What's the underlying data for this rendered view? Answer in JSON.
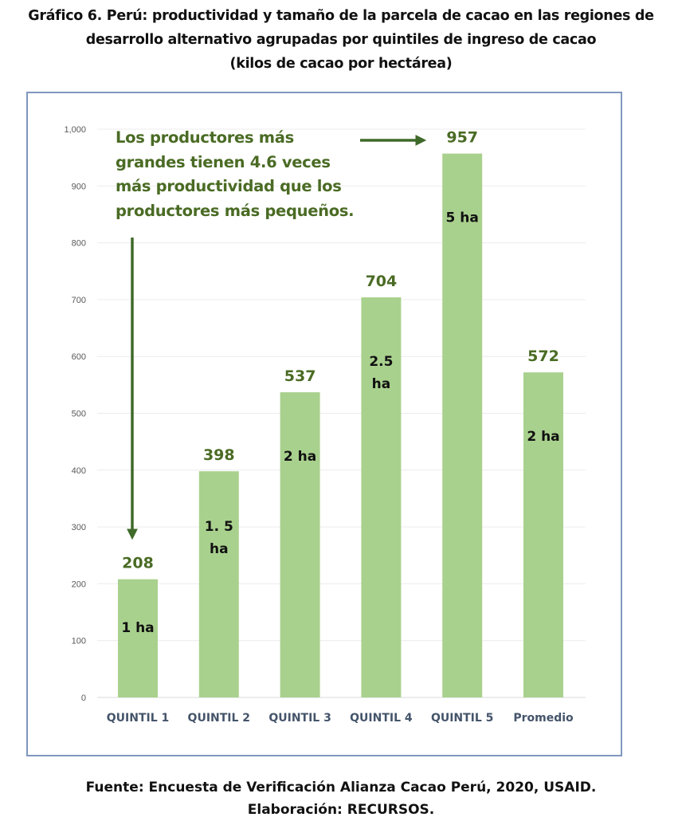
{
  "title_lines": [
    "Gráfico 6. Perú: productividad y tamaño de la parcela de cacao en las regiones de",
    "desarrollo alternativo agrupadas por quintiles de ingreso de cacao",
    "(kilos de cacao por hectárea)"
  ],
  "source_lines": [
    "Fuente: Encuesta de Verificación Alianza Cacao Perú, 2020, USAID.",
    "Elaboración: RECURSOS."
  ],
  "chart_data": {
    "type": "bar",
    "categories": [
      "QUINTIL 1",
      "QUINTIL 2",
      "QUINTIL 3",
      "QUINTIL 4",
      "QUINTIL 5",
      "Promedio"
    ],
    "values": [
      208,
      398,
      537,
      704,
      957,
      572
    ],
    "value_labels": [
      "208",
      "398",
      "537",
      "704",
      "957",
      "572"
    ],
    "inner_labels": [
      [
        "1 ha"
      ],
      [
        "1. 5",
        "ha"
      ],
      [
        "2 ha"
      ],
      [
        "2.5",
        "ha"
      ],
      [
        "5 ha"
      ],
      [
        "2 ha"
      ]
    ],
    "ylim": [
      0,
      1000
    ],
    "yticks": [
      "0",
      "100",
      "200",
      "300",
      "400",
      "500",
      "600",
      "700",
      "800",
      "900",
      "1,000"
    ],
    "grid": true,
    "annotation": [
      "Los productores más",
      "grandes tienen 4.6 veces",
      "más productividad que los",
      "productores más pequeños."
    ],
    "colors": {
      "bar": "#a9d18e",
      "value_label": "#4a6b24",
      "arrow": "#3f6a2a",
      "axis_label": "#44546a"
    }
  }
}
